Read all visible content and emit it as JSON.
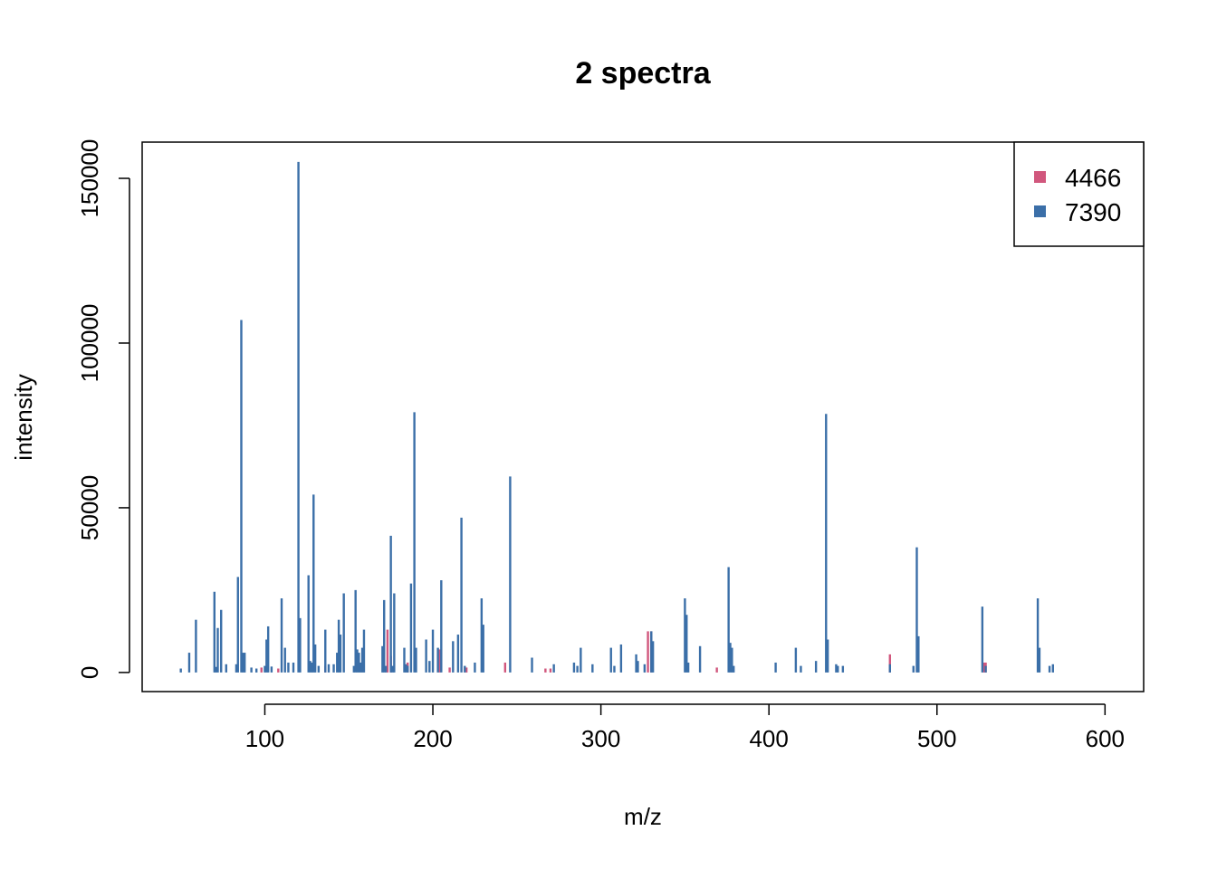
{
  "chart_data": {
    "type": "bar",
    "subtype": "mass-spectrum-sticks",
    "title": "2 spectra",
    "xlabel": "m/z",
    "ylabel": "intensity",
    "xlim": [
      27,
      623
    ],
    "ylim": [
      -5800,
      161000
    ],
    "x_ticks": [
      100,
      200,
      300,
      400,
      500,
      600
    ],
    "y_ticks": [
      0,
      50000,
      100000,
      150000
    ],
    "legend_position": "top-right",
    "grid": false,
    "series": [
      {
        "name": "4466",
        "color": "#D1577D",
        "peaks": [
          [
            98,
            1500
          ],
          [
            108,
            1200
          ],
          [
            136,
            2000
          ],
          [
            173,
            13000
          ],
          [
            175,
            5000
          ],
          [
            185,
            3000
          ],
          [
            204,
            7000
          ],
          [
            210,
            1500
          ],
          [
            220,
            1500
          ],
          [
            243,
            3000
          ],
          [
            267,
            1200
          ],
          [
            270,
            1200
          ],
          [
            328,
            12500
          ],
          [
            330,
            12500
          ],
          [
            369,
            1500
          ],
          [
            472,
            5500
          ],
          [
            528,
            3000
          ],
          [
            529,
            3000
          ]
        ]
      },
      {
        "name": "7390",
        "color": "#3B6FA8",
        "peaks": [
          [
            50,
            1200
          ],
          [
            55,
            6000
          ],
          [
            59,
            16000
          ],
          [
            70,
            24500
          ],
          [
            71,
            1700
          ],
          [
            72,
            13500
          ],
          [
            74,
            19000
          ],
          [
            77,
            2500
          ],
          [
            83,
            2500
          ],
          [
            84,
            29000
          ],
          [
            86,
            107000
          ],
          [
            87,
            6000
          ],
          [
            88,
            6000
          ],
          [
            92,
            1500
          ],
          [
            95,
            1200
          ],
          [
            100,
            2000
          ],
          [
            101,
            10000
          ],
          [
            102,
            14000
          ],
          [
            104,
            1800
          ],
          [
            110,
            22500
          ],
          [
            112,
            7500
          ],
          [
            114,
            3000
          ],
          [
            117,
            3000
          ],
          [
            120,
            155000
          ],
          [
            121,
            16500
          ],
          [
            126,
            29500
          ],
          [
            127,
            3500
          ],
          [
            128,
            3000
          ],
          [
            129,
            54000
          ],
          [
            130,
            8500
          ],
          [
            132,
            2000
          ],
          [
            136,
            13000
          ],
          [
            138,
            2500
          ],
          [
            141,
            2500
          ],
          [
            143,
            6000
          ],
          [
            144,
            16000
          ],
          [
            145,
            11500
          ],
          [
            147,
            24000
          ],
          [
            153,
            2000
          ],
          [
            154,
            25000
          ],
          [
            155,
            7000
          ],
          [
            156,
            6000
          ],
          [
            157,
            3000
          ],
          [
            158,
            7500
          ],
          [
            159,
            13000
          ],
          [
            170,
            8000
          ],
          [
            171,
            22000
          ],
          [
            172,
            2000
          ],
          [
            175,
            41500
          ],
          [
            176,
            2000
          ],
          [
            177,
            24000
          ],
          [
            183,
            7500
          ],
          [
            184,
            2500
          ],
          [
            185,
            2000
          ],
          [
            187,
            27000
          ],
          [
            189,
            79000
          ],
          [
            190,
            7500
          ],
          [
            196,
            10000
          ],
          [
            198,
            3500
          ],
          [
            200,
            13000
          ],
          [
            203,
            7500
          ],
          [
            205,
            28000
          ],
          [
            212,
            9500
          ],
          [
            215,
            11500
          ],
          [
            217,
            47000
          ],
          [
            219,
            2000
          ],
          [
            225,
            3000
          ],
          [
            229,
            22500
          ],
          [
            230,
            14500
          ],
          [
            246,
            59500
          ],
          [
            259,
            4500
          ],
          [
            272,
            2500
          ],
          [
            284,
            3000
          ],
          [
            286,
            2000
          ],
          [
            288,
            7500
          ],
          [
            295,
            2500
          ],
          [
            306,
            7500
          ],
          [
            308,
            2000
          ],
          [
            312,
            8500
          ],
          [
            321,
            5500
          ],
          [
            322,
            3500
          ],
          [
            326,
            2500
          ],
          [
            330,
            12500
          ],
          [
            331,
            9500
          ],
          [
            350,
            22500
          ],
          [
            351,
            17500
          ],
          [
            352,
            3000
          ],
          [
            359,
            8000
          ],
          [
            376,
            32000
          ],
          [
            377,
            9000
          ],
          [
            378,
            7500
          ],
          [
            379,
            2000
          ],
          [
            404,
            3000
          ],
          [
            416,
            7500
          ],
          [
            419,
            2000
          ],
          [
            428,
            3500
          ],
          [
            434,
            78500
          ],
          [
            435,
            10000
          ],
          [
            440,
            2500
          ],
          [
            441,
            2000
          ],
          [
            444,
            2000
          ],
          [
            472,
            2500
          ],
          [
            486,
            2000
          ],
          [
            488,
            38000
          ],
          [
            489,
            11000
          ],
          [
            527,
            20000
          ],
          [
            529,
            2000
          ],
          [
            560,
            22500
          ],
          [
            561,
            7500
          ],
          [
            567,
            2000
          ],
          [
            569,
            2500
          ]
        ]
      }
    ]
  }
}
